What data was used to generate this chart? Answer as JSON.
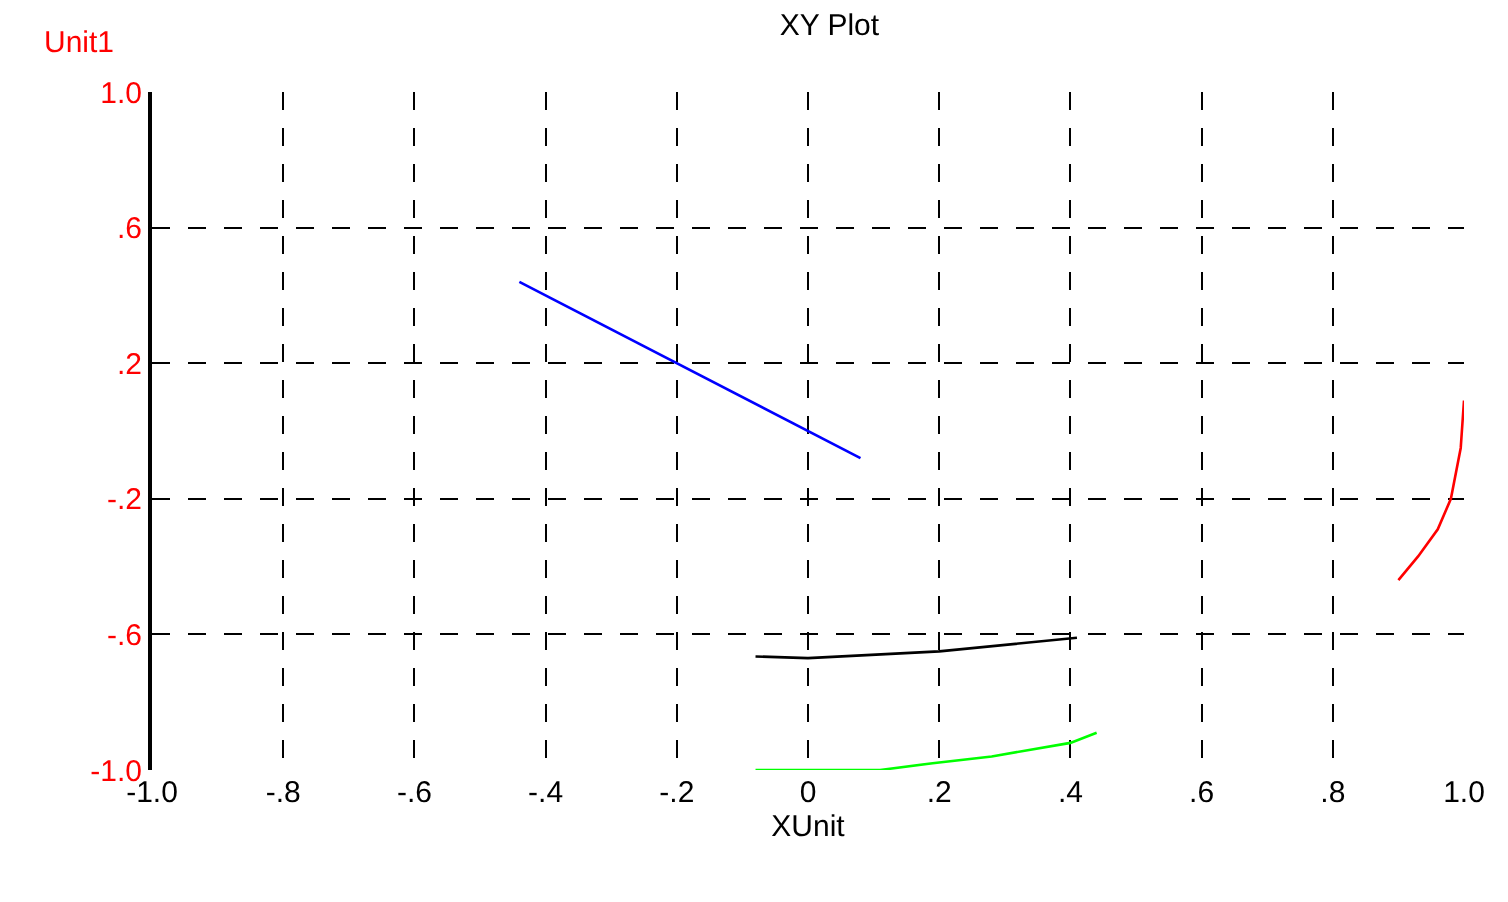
{
  "chart_data": {
    "type": "line",
    "title": "XY Plot",
    "xlabel": "XUnit",
    "ylabel": "Unit1",
    "xlim": [
      -1.0,
      1.0
    ],
    "ylim": [
      -1.0,
      1.0
    ],
    "xticks": [
      {
        "value": -1.0,
        "label": "-1.0"
      },
      {
        "value": -0.8,
        "label": "-.8"
      },
      {
        "value": -0.6,
        "label": "-.6"
      },
      {
        "value": -0.4,
        "label": "-.4"
      },
      {
        "value": -0.2,
        "label": "-.2"
      },
      0,
      {
        "value": 0.2,
        "label": ".2"
      },
      {
        "value": 0.4,
        "label": ".4"
      },
      {
        "value": 0.6,
        "label": ".6"
      },
      {
        "value": 0.8,
        "label": ".8"
      },
      {
        "value": 1.0,
        "label": "1.0"
      }
    ],
    "yticks": [
      {
        "value": -1.0,
        "label": "-1.0"
      },
      {
        "value": -0.6,
        "label": "-.6"
      },
      {
        "value": -0.2,
        "label": "-.2"
      },
      {
        "value": 0.2,
        "label": ".2"
      },
      {
        "value": 0.6,
        "label": ".6"
      },
      {
        "value": 1.0,
        "label": "1.0"
      }
    ],
    "grid": true,
    "line_style": "solid",
    "marker": "none",
    "series": [
      {
        "color": "#0000ff",
        "x": [
          -0.44,
          0.08
        ],
        "values": [
          0.44,
          -0.08
        ]
      },
      {
        "color": "#000000",
        "x": [
          -0.08,
          0.0,
          0.2,
          0.41
        ],
        "values": [
          -0.665,
          -0.67,
          -0.65,
          -0.61
        ]
      },
      {
        "color": "#00ff00",
        "x": [
          -0.08,
          0.11,
          0.19,
          0.28,
          0.4,
          0.44
        ],
        "values": [
          -1.0,
          -1.0,
          -0.98,
          -0.96,
          -0.92,
          -0.89
        ]
      },
      {
        "color": "#ff0000",
        "x": [
          0.9,
          0.93,
          0.96,
          0.98,
          0.995,
          1.0
        ],
        "values": [
          -0.44,
          -0.37,
          -0.29,
          -0.2,
          -0.05,
          0.09
        ]
      }
    ]
  }
}
